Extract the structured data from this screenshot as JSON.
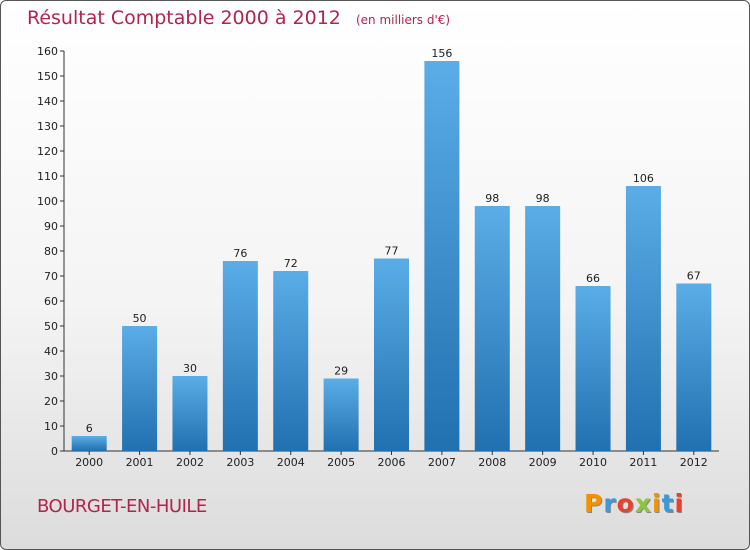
{
  "header": {
    "title": "Résultat Comptable 2000 à 2012",
    "subtitle": "(en milliers d'€)"
  },
  "footer": {
    "commune": "BOURGET-EN-HUILE",
    "logo_text": "Proxiti",
    "logo_colors": [
      "#f39200",
      "#3a9ad9",
      "#e8412c",
      "#8cc63f",
      "#f39200",
      "#3a9ad9",
      "#e8412c"
    ]
  },
  "colors": {
    "title": "#b5234d",
    "bar_top": "#5aade6",
    "bar_bottom": "#2170b0",
    "axis": "#333333"
  },
  "chart_data": {
    "type": "bar",
    "title": "Résultat Comptable 2000 à 2012",
    "subtitle": "(en milliers d'€)",
    "xlabel": "",
    "ylabel": "",
    "categories": [
      "2000",
      "2001",
      "2002",
      "2003",
      "2004",
      "2005",
      "2006",
      "2007",
      "2008",
      "2009",
      "2010",
      "2011",
      "2012"
    ],
    "values": [
      6,
      50,
      30,
      76,
      72,
      29,
      77,
      156,
      98,
      98,
      66,
      106,
      67
    ],
    "ylim": [
      0,
      160
    ],
    "yticks": [
      0,
      10,
      20,
      30,
      40,
      50,
      60,
      70,
      80,
      90,
      100,
      110,
      120,
      130,
      140,
      150,
      160
    ],
    "grid": false,
    "legend": "none"
  }
}
